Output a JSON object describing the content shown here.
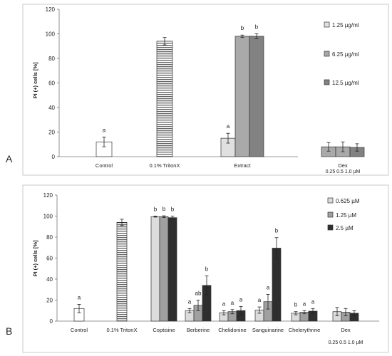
{
  "chart_data": [
    {
      "panel_label": "A",
      "type": "bar",
      "ylabel": "PI (+) cells [%]",
      "ylim": [
        0,
        120
      ],
      "yticks": [
        0,
        20,
        40,
        60,
        80,
        100,
        120
      ],
      "grid": false,
      "legend_placement": "right",
      "groups": [
        {
          "label": "Control",
          "sublabel": "",
          "bars": [
            {
              "series": "control",
              "value": 12,
              "error": 4,
              "letter": "a"
            }
          ]
        },
        {
          "label": "0.1% TritonX",
          "sublabel": "",
          "bars": [
            {
              "series": "triton",
              "value": 94,
              "error": 3,
              "letter": ""
            }
          ]
        },
        {
          "label": "Extract",
          "sublabel": "",
          "bars": [
            {
              "series": "s1",
              "value": 15,
              "error": 4,
              "letter": "a"
            },
            {
              "series": "s2",
              "value": 98,
              "error": 1,
              "letter": "b"
            },
            {
              "series": "s3",
              "value": 98,
              "error": 2,
              "letter": "b"
            }
          ]
        },
        {
          "label": "Dex",
          "sublabel": "0.25  0.5  1.0 µM",
          "bars": [
            {
              "series": "s2",
              "value": 8,
              "error": 3.5,
              "letter": ""
            },
            {
              "series": "s2",
              "value": 8,
              "error": 4,
              "letter": ""
            },
            {
              "series": "s3",
              "value": 7.5,
              "error": 3,
              "letter": ""
            }
          ]
        }
      ],
      "legend": [
        {
          "name": "1.25 µg/ml",
          "series": "s1"
        },
        {
          "name": "6.25 µg/ml",
          "series": "s2"
        },
        {
          "name": "12.5 µg/ml",
          "series": "s3"
        }
      ],
      "colors": {
        "control": "#ffffff",
        "s1": "#e0e0e0",
        "s2": "#a9a9a9",
        "s3": "#828282"
      }
    },
    {
      "panel_label": "B",
      "type": "bar",
      "ylabel": "PI (+) cells [%]",
      "ylim": [
        0,
        120
      ],
      "yticks": [
        0,
        20,
        40,
        60,
        80,
        100,
        120
      ],
      "grid": false,
      "legend_placement": "top-right",
      "groups": [
        {
          "label": "Control",
          "sublabel": "",
          "bars": [
            {
              "series": "control",
              "value": 12,
              "error": 4,
              "letter": "a"
            }
          ]
        },
        {
          "label": "0.1% TritonX",
          "sublabel": "",
          "bars": [
            {
              "series": "triton",
              "value": 94,
              "error": 3,
              "letter": ""
            }
          ]
        },
        {
          "label": "Coptisine",
          "sublabel": "",
          "bars": [
            {
              "series": "s1",
              "value": 99.5,
              "error": 0.5,
              "letter": "b"
            },
            {
              "series": "s2",
              "value": 99.5,
              "error": 0.8,
              "letter": "b"
            },
            {
              "series": "s3",
              "value": 98.5,
              "error": 1.5,
              "letter": "b"
            }
          ]
        },
        {
          "label": "Berberine",
          "sublabel": "",
          "bars": [
            {
              "series": "s1",
              "value": 10,
              "error": 2,
              "letter": "a"
            },
            {
              "series": "s2",
              "value": 15,
              "error": 5,
              "letter": "ab"
            },
            {
              "series": "s3",
              "value": 34,
              "error": 9,
              "letter": "b"
            }
          ]
        },
        {
          "label": "Chelidonine",
          "sublabel": "",
          "bars": [
            {
              "series": "s1",
              "value": 8,
              "error": 2,
              "letter": "a"
            },
            {
              "series": "s2",
              "value": 9,
              "error": 2,
              "letter": "a"
            },
            {
              "series": "s3",
              "value": 10,
              "error": 4,
              "letter": "a"
            }
          ]
        },
        {
          "label": "Sanguinarine",
          "sublabel": "",
          "bars": [
            {
              "series": "s1",
              "value": 10.5,
              "error": 3,
              "letter": "a"
            },
            {
              "series": "s2",
              "value": 18.5,
              "error": 7,
              "letter": "a"
            },
            {
              "series": "s3",
              "value": 69.5,
              "error": 10,
              "letter": "b"
            }
          ]
        },
        {
          "label": "Chelerythrine",
          "sublabel": "",
          "bars": [
            {
              "series": "s1",
              "value": 7.5,
              "error": 1.5,
              "letter": "b"
            },
            {
              "series": "s2",
              "value": 8.5,
              "error": 1.5,
              "letter": "a"
            },
            {
              "series": "s3",
              "value": 9.5,
              "error": 2.5,
              "letter": "a"
            }
          ]
        },
        {
          "label": "Dex",
          "sublabel": "0.25  0.5  1.0 µM",
          "bars": [
            {
              "series": "s1",
              "value": 9,
              "error": 4,
              "letter": ""
            },
            {
              "series": "s2",
              "value": 8.5,
              "error": 3.5,
              "letter": ""
            },
            {
              "series": "s3",
              "value": 7.5,
              "error": 2.5,
              "letter": ""
            }
          ]
        }
      ],
      "legend": [
        {
          "name": "0.625 µM",
          "series": "s1"
        },
        {
          "name": "1.25 µM",
          "series": "s2"
        },
        {
          "name": "2.5 µM",
          "series": "s3"
        }
      ],
      "colors": {
        "control": "#ffffff",
        "s1": "#dcdcdc",
        "s2": "#a0a0a0",
        "s3": "#2e2e2e"
      }
    }
  ]
}
